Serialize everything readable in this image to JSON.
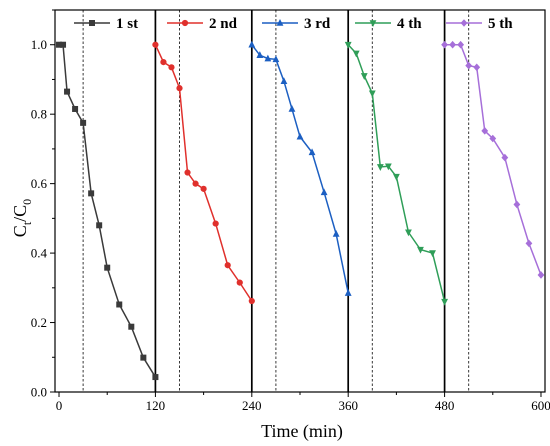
{
  "chart_data": {
    "type": "line",
    "xlabel": "Time (min)",
    "ylabel_main": "C",
    "ylabel_sub1": "t",
    "ylabel_sep": "/C",
    "ylabel_sub2": "0",
    "xlim": [
      -5,
      605
    ],
    "ylim": [
      0,
      1.1
    ],
    "xticks": [
      "0",
      "120",
      "240",
      "360",
      "480",
      "600"
    ],
    "yticks": [
      "0.0",
      "0.2",
      "0.4",
      "0.6",
      "0.8",
      "1.0"
    ],
    "grid": false,
    "legend_position": "top",
    "cycle_boundaries": [
      120,
      240,
      360,
      480
    ],
    "dark_phase_ends": [
      30,
      150,
      270,
      390,
      510
    ],
    "series": [
      {
        "name": "1 st",
        "color": "#3a3a3a",
        "marker": "square",
        "x": [
          0,
          5,
          10,
          20,
          30,
          40,
          50,
          60,
          75,
          90,
          105,
          120
        ],
        "y": [
          1.0,
          1.0,
          0.865,
          0.815,
          0.775,
          0.572,
          0.48,
          0.358,
          0.252,
          0.188,
          0.099,
          0.043
        ]
      },
      {
        "name": "2 nd",
        "color": "#e0302c",
        "marker": "circle",
        "x": [
          120,
          130,
          140,
          150,
          160,
          170,
          180,
          195,
          210,
          225,
          240
        ],
        "y": [
          1.0,
          0.95,
          0.935,
          0.875,
          0.632,
          0.6,
          0.585,
          0.485,
          0.365,
          0.315,
          0.262
        ]
      },
      {
        "name": "3 rd",
        "color": "#1c5fc2",
        "marker": "triangle-up",
        "x": [
          240,
          250,
          260,
          270,
          280,
          290,
          300,
          315,
          330,
          345,
          360
        ],
        "y": [
          1.0,
          0.97,
          0.96,
          0.958,
          0.895,
          0.815,
          0.735,
          0.69,
          0.575,
          0.455,
          0.285
        ]
      },
      {
        "name": "4 th",
        "color": "#2f9e58",
        "marker": "triangle-down",
        "x": [
          360,
          370,
          380,
          390,
          400,
          410,
          420,
          435,
          450,
          465,
          480
        ],
        "y": [
          1.0,
          0.975,
          0.91,
          0.86,
          0.648,
          0.65,
          0.62,
          0.46,
          0.41,
          0.4,
          0.26
        ]
      },
      {
        "name": "5 th",
        "color": "#a66fd9",
        "marker": "diamond",
        "x": [
          480,
          490,
          500,
          510,
          520,
          530,
          540,
          555,
          570,
          585,
          600
        ],
        "y": [
          1.0,
          1.0,
          1.0,
          0.94,
          0.935,
          0.752,
          0.73,
          0.675,
          0.54,
          0.428,
          0.337
        ]
      }
    ]
  }
}
